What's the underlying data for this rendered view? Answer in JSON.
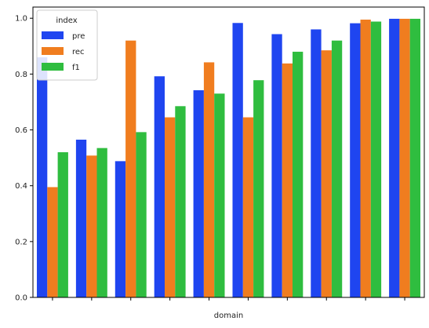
{
  "chart_data": {
    "type": "bar",
    "xlabel": "domain",
    "ylabel": "",
    "ylim": [
      0,
      1.04
    ],
    "yticks": [
      "0.0",
      "0.2",
      "0.4",
      "0.6",
      "0.8",
      "1.0"
    ],
    "ytick_values": [
      0,
      0.2,
      0.4,
      0.6,
      0.8,
      1.0
    ],
    "categories": [
      "",
      "",
      "",
      "",
      "",
      "",
      "",
      "",
      "",
      ""
    ],
    "legend": {
      "title": "index",
      "placement": "top-left"
    },
    "series": [
      {
        "name": "pre",
        "color": "#1f45f0",
        "values": [
          0.86,
          0.565,
          0.488,
          0.792,
          0.742,
          0.983,
          0.943,
          0.96,
          0.982,
          0.998
        ]
      },
      {
        "name": "rec",
        "color": "#f07d1f",
        "values": [
          0.395,
          0.508,
          0.92,
          0.645,
          0.842,
          0.645,
          0.838,
          0.885,
          0.995,
          0.998
        ]
      },
      {
        "name": "f1",
        "color": "#2fbd3f",
        "values": [
          0.52,
          0.535,
          0.592,
          0.685,
          0.73,
          0.778,
          0.88,
          0.92,
          0.988,
          0.998
        ]
      }
    ]
  }
}
